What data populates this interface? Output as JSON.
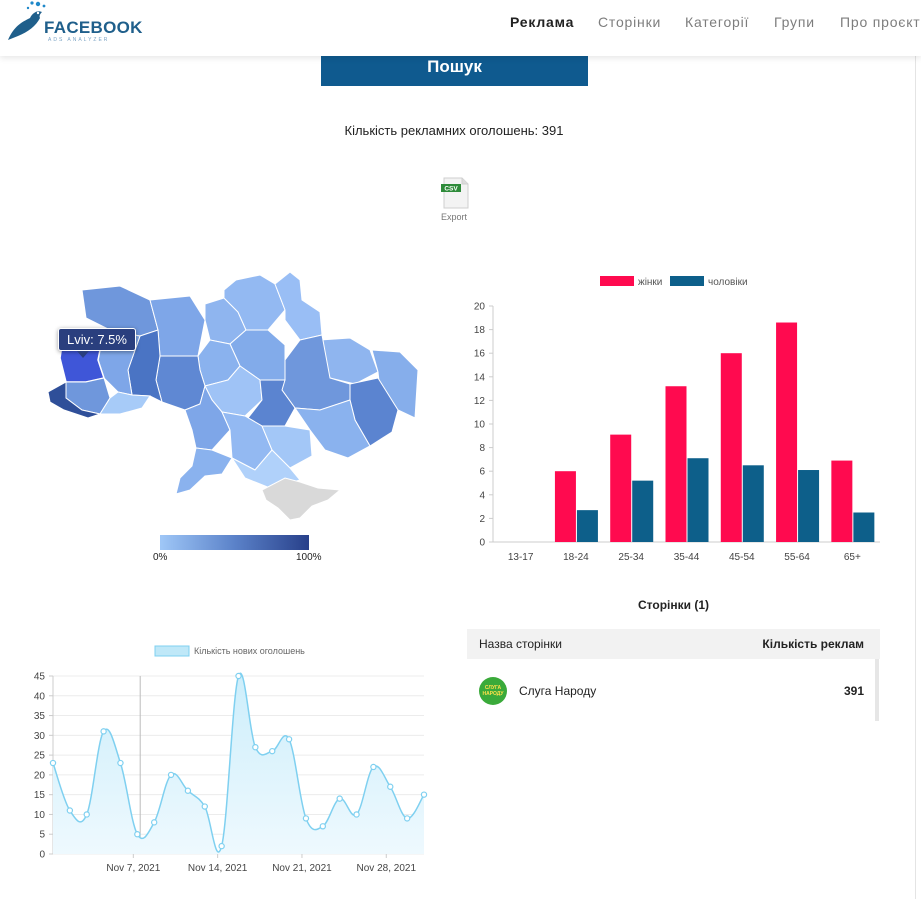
{
  "brand": {
    "name": "FACEBOOK",
    "sub": "ADS ANALYZER"
  },
  "nav": {
    "items": [
      {
        "label": "Реклама",
        "active": true
      },
      {
        "label": "Сторінки",
        "active": false
      },
      {
        "label": "Категорії",
        "active": false
      },
      {
        "label": "Групи",
        "active": false
      },
      {
        "label": "Про проєкт",
        "active": false
      }
    ]
  },
  "search": {
    "label": "Пошук"
  },
  "ads_count": {
    "text": "Кількість рекламних оголошень: 391"
  },
  "export": {
    "icon_text": "CSV",
    "label": "Export"
  },
  "map": {
    "tooltip": "Lviv: 7.5%",
    "scale_min": "0%",
    "scale_max": "100%",
    "colors": {
      "light": "#9fc7f7",
      "dark": "#28408a",
      "highlight": "#3f56d8",
      "crimea": "#d9d9d9"
    }
  },
  "chart_data": [
    {
      "type": "bar",
      "categories": [
        "13-17",
        "18-24",
        "25-34",
        "35-44",
        "45-54",
        "55-64",
        "65+"
      ],
      "series": [
        {
          "name": "жінки",
          "color": "#ff0a4f",
          "values": [
            0,
            6,
            9.1,
            13.2,
            16,
            18.6,
            6.9
          ]
        },
        {
          "name": "чоловіки",
          "color": "#0d5f8a",
          "values": [
            0,
            2.7,
            5.2,
            7.1,
            6.5,
            6.1,
            2.5
          ]
        }
      ],
      "ylim": [
        0,
        20
      ],
      "yticks": [
        0,
        2,
        4,
        6,
        8,
        10,
        12,
        14,
        16,
        18,
        20
      ],
      "legend": "top",
      "grid": false
    },
    {
      "type": "area",
      "series": [
        {
          "name": "Кількість нових оголошень",
          "color": "#7fd0f0",
          "values": [
            23,
            11,
            10,
            31,
            23,
            5,
            8,
            20,
            16,
            12,
            2,
            45,
            27,
            26,
            29,
            9,
            7,
            14,
            10,
            22,
            17,
            9,
            15
          ]
        }
      ],
      "xticks": [
        "Nov 7, 2021",
        "Nov 14, 2021",
        "Nov 21, 2021",
        "Nov 28, 2021"
      ],
      "ylim": [
        0,
        45
      ],
      "yticks": [
        0,
        5,
        10,
        15,
        20,
        25,
        30,
        35,
        40,
        45
      ],
      "legend": "top",
      "grid": true
    }
  ],
  "pages": {
    "title": "Сторінки (1)",
    "col_name": "Назва сторінки",
    "col_count": "Кількість реклам",
    "rows": [
      {
        "name": "Слуга Народу",
        "count": "391",
        "avatar_text": "СЛУГА НАРОДУ"
      }
    ]
  }
}
